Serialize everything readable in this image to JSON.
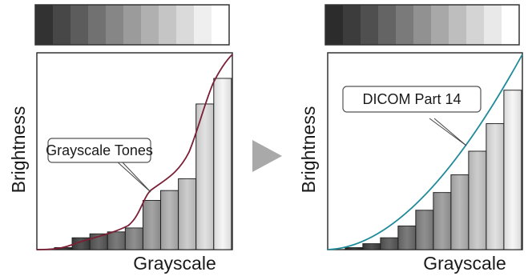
{
  "left_panel": {
    "y_label": "Brightness",
    "x_label": "Grayscale",
    "callout": "Grayscale Tones",
    "curve_color": "#7a1f35",
    "bar_heights": [
      0.01,
      0.06,
      0.08,
      0.09,
      0.11,
      0.25,
      0.3,
      0.36,
      0.74,
      0.87
    ],
    "strip_shades": [
      "#323232",
      "#474747",
      "#5c5c5c",
      "#717171",
      "#868686",
      "#9b9b9b",
      "#b0b0b0",
      "#c5c5c5",
      "#dadada",
      "#efefef",
      "#ffffff"
    ]
  },
  "right_panel": {
    "y_label": "Brightness",
    "x_label": "Grayscale",
    "callout": "DICOM Part 14",
    "curve_color": "#1f8a9a",
    "bar_heights": [
      0.01,
      0.03,
      0.06,
      0.12,
      0.2,
      0.29,
      0.38,
      0.5,
      0.64,
      0.81
    ],
    "strip_shades": [
      "#2c2c2c",
      "#3c3c3c",
      "#4f4f4f",
      "#646464",
      "#7a7a7a",
      "#919191",
      "#a8a8a8",
      "#bebebe",
      "#d4d4d4",
      "#e9e9e9",
      "#ffffff"
    ]
  },
  "arrow_color": "#a9a9a9"
}
